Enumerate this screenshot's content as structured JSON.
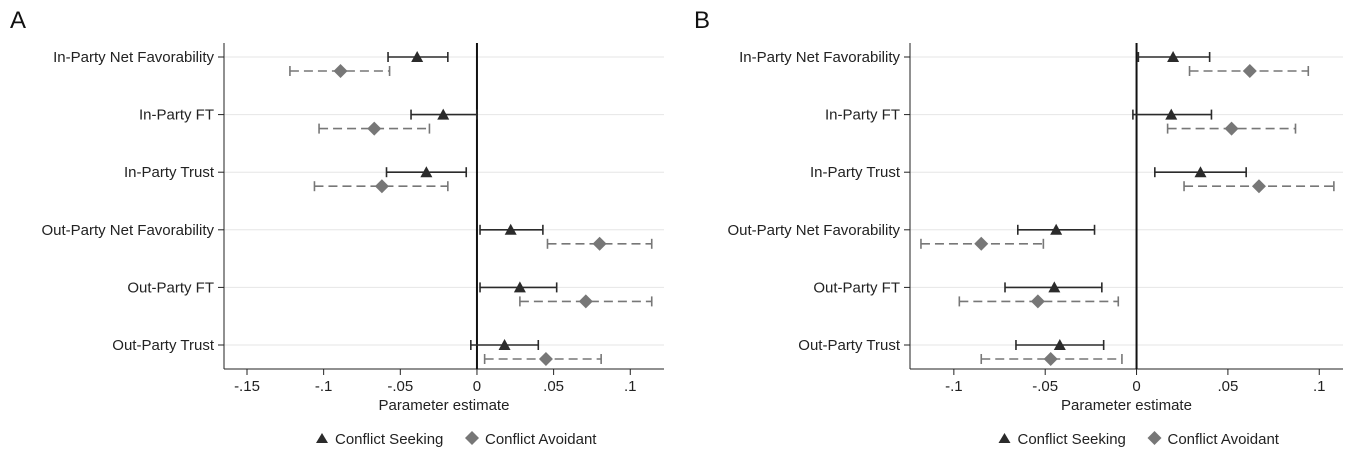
{
  "chart_data": [
    {
      "panel_label": "A",
      "type": "scatter",
      "subtype": "coefficient-plot-with-confidence-intervals",
      "categories": [
        "In-Party Net Favorability",
        "In-Party FT",
        "In-Party Trust",
        "Out-Party Net Favorability",
        "Out-Party FT",
        "Out-Party Trust"
      ],
      "xlabel": "Parameter estimate",
      "xlim": [
        -0.165,
        0.122
      ],
      "xticks": [
        -0.15,
        -0.1,
        -0.05,
        0,
        0.05,
        0.1
      ],
      "xtick_labels": [
        "-.15",
        "-.1",
        "-.05",
        "0",
        ".05",
        ".1"
      ],
      "reference_line": 0,
      "grid": true,
      "legend_position": "bottom-center",
      "series": [
        {
          "name": "Conflict Seeking",
          "marker": "triangle",
          "line_style": "solid",
          "color": "#2b2b2b",
          "estimates": [
            -0.039,
            -0.022,
            -0.033,
            0.022,
            0.028,
            0.018
          ],
          "ci_low": [
            -0.058,
            -0.043,
            -0.059,
            0.002,
            0.002,
            -0.004
          ],
          "ci_high": [
            -0.019,
            0.0,
            -0.007,
            0.043,
            0.052,
            0.04
          ]
        },
        {
          "name": "Conflict Avoidant",
          "marker": "diamond",
          "line_style": "dashed",
          "color": "#777777",
          "estimates": [
            -0.089,
            -0.067,
            -0.062,
            0.08,
            0.071,
            0.045
          ],
          "ci_low": [
            -0.122,
            -0.103,
            -0.106,
            0.046,
            0.028,
            0.005
          ],
          "ci_high": [
            -0.057,
            -0.031,
            -0.019,
            0.114,
            0.114,
            0.081
          ]
        }
      ]
    },
    {
      "panel_label": "B",
      "type": "scatter",
      "subtype": "coefficient-plot-with-confidence-intervals",
      "categories": [
        "In-Party Net Favorability",
        "In-Party FT",
        "In-Party Trust",
        "Out-Party Net Favorability",
        "Out-Party FT",
        "Out-Party Trust"
      ],
      "xlabel": "Parameter estimate",
      "xlim": [
        -0.124,
        0.113
      ],
      "xticks": [
        -0.1,
        -0.05,
        0,
        0.05,
        0.1
      ],
      "xtick_labels": [
        "-.1",
        "-.05",
        "0",
        ".05",
        ".1"
      ],
      "reference_line": 0,
      "grid": true,
      "legend_position": "bottom-center",
      "series": [
        {
          "name": "Conflict Seeking",
          "marker": "triangle",
          "line_style": "solid",
          "color": "#2b2b2b",
          "estimates": [
            0.02,
            0.019,
            0.035,
            -0.044,
            -0.045,
            -0.042
          ],
          "ci_low": [
            0.001,
            -0.002,
            0.01,
            -0.065,
            -0.072,
            -0.066
          ],
          "ci_high": [
            0.04,
            0.041,
            0.06,
            -0.023,
            -0.019,
            -0.018
          ]
        },
        {
          "name": "Conflict Avoidant",
          "marker": "diamond",
          "line_style": "dashed",
          "color": "#777777",
          "estimates": [
            0.062,
            0.052,
            0.067,
            -0.085,
            -0.054,
            -0.047
          ],
          "ci_low": [
            0.029,
            0.017,
            0.026,
            -0.118,
            -0.097,
            -0.085
          ],
          "ci_high": [
            0.094,
            0.087,
            0.108,
            -0.051,
            -0.01,
            -0.008
          ]
        }
      ]
    }
  ]
}
